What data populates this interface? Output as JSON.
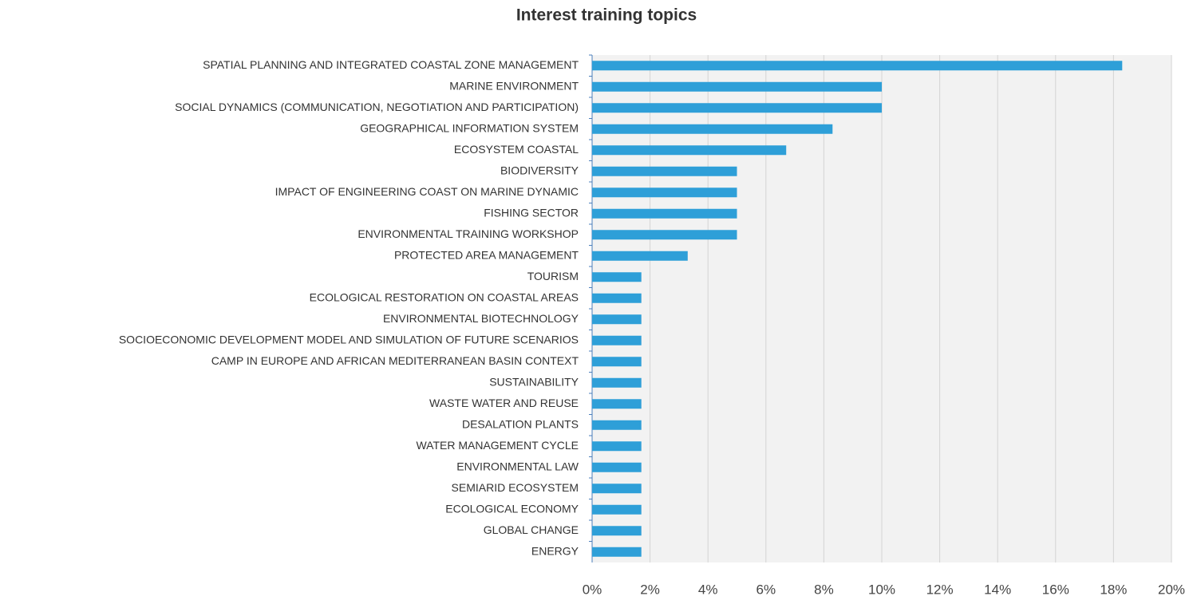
{
  "chart_data": {
    "type": "hbar",
    "title": "Interest training topics",
    "categories": [
      "SPATIAL PLANNING AND INTEGRATED COASTAL ZONE MANAGEMENT",
      "MARINE ENVIRONMENT",
      "SOCIAL DYNAMICS (COMMUNICATION, NEGOTIATION AND PARTICIPATION)",
      "GEOGRAPHICAL INFORMATION SYSTEM",
      "ECOSYSTEM COASTAL",
      "BIODIVERSITY",
      "IMPACT OF ENGINEERING COAST ON MARINE DYNAMIC",
      "FISHING SECTOR",
      "ENVIRONMENTAL TRAINING WORKSHOP",
      "PROTECTED AREA MANAGEMENT",
      "TOURISM",
      "ECOLOGICAL RESTORATION ON COASTAL AREAS",
      "ENVIRONMENTAL BIOTECHNOLOGY",
      "SOCIOECONOMIC DEVELOPMENT MODEL AND SIMULATION OF FUTURE SCENARIOS",
      "CAMP IN EUROPE AND AFRICAN MEDITERRANEAN BASIN CONTEXT",
      "SUSTAINABILITY",
      "WASTE WATER AND REUSE",
      "DESALATION PLANTS",
      "WATER MANAGEMENT CYCLE",
      "ENVIRONMENTAL LAW",
      "SEMIARID ECOSYSTEM",
      "ECOLOGICAL ECONOMY",
      "GLOBAL CHANGE",
      "ENERGY"
    ],
    "values": [
      18.3,
      10,
      10,
      8.3,
      6.7,
      5,
      5,
      5,
      5,
      3.3,
      1.7,
      1.7,
      1.7,
      1.7,
      1.7,
      1.7,
      1.7,
      1.7,
      1.7,
      1.7,
      1.7,
      1.7,
      1.7,
      1.7
    ],
    "color": "#2e9fd8",
    "xlim": [
      0,
      20
    ],
    "xticks": [
      {
        "value": 0,
        "label": "0%"
      },
      {
        "value": 2,
        "label": "2%"
      },
      {
        "value": 4,
        "label": "4%"
      },
      {
        "value": 6,
        "label": "6%"
      },
      {
        "value": 8,
        "label": "8%"
      },
      {
        "value": 10,
        "label": "10%"
      },
      {
        "value": 12,
        "label": "12%"
      },
      {
        "value": 14,
        "label": "14%"
      },
      {
        "value": 16,
        "label": "16%"
      },
      {
        "value": 18,
        "label": "18%"
      },
      {
        "value": 20,
        "label": "20%"
      }
    ],
    "grid": true
  }
}
